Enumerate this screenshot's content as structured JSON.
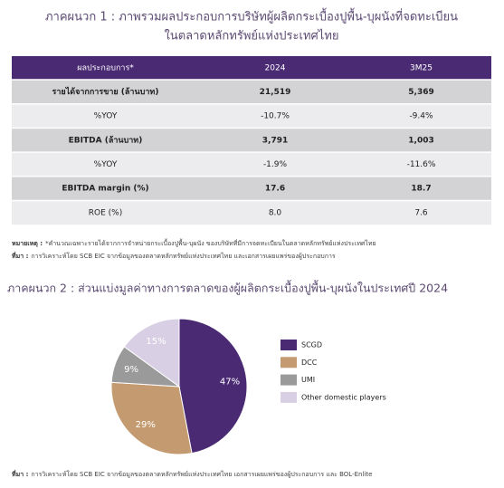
{
  "appendix1": {
    "title_lines": [
      "ภาคผนวก 1 : ภาพรวมผลประกอบการบริษัทผู้ผลิตกระเบื้องปูพื้น-บุผนังที่จดทะเบียน",
      "ในตลาดหลักทรัพย์แห่งประเทศไทย"
    ]
  },
  "table": {
    "header": [
      "ผลประกอบการ*",
      "2024",
      "3M25"
    ],
    "rows": [
      [
        "รายได้จากการขาย (ล้านบาท)",
        "21,519",
        "5,369"
      ],
      [
        "%YOY",
        "-10.7%",
        "-9.4%"
      ],
      [
        "EBITDA (ล้านบาท)",
        "3,791",
        "1,003"
      ],
      [
        "%YOY",
        "-1.9%",
        "-11.6%"
      ],
      [
        "EBITDA margin (%)",
        "17.6",
        "18.7"
      ],
      [
        "ROE (%)",
        "8.0",
        "7.6"
      ]
    ]
  },
  "notes": [
    {
      "label": "หมายเหตุ :",
      "text": "*คำนวณเฉพาะรายได้จากการจำหน่ายกระเบื้องปูพื้น-บุผนัง ของบริษัทที่มีการจดทะเบียนในตลาดหลักทรัพย์แห่งประเทศไทย"
    },
    {
      "label": "ที่มา :",
      "text": "การวิเคราะห์โดย SCB EIC จากข้อมูลของตลาดหลักทรัพย์แห่งประเทศไทย และเอกสารเผยแพร่ของผู้ประกอบการ"
    }
  ],
  "chart_data": {
    "type": "pie",
    "title": "ภาคผนวก 2 : ส่วนแบ่งมูลค่าทางการตลาดของผู้ผลิตกระเบื้องปูพื้น-บุผนังในประเทศปี 2024",
    "categories": [
      "SCGD",
      "DCC",
      "UMI",
      "Other domestic players"
    ],
    "values": [
      47,
      29,
      9,
      15
    ],
    "value_labels": [
      "47%",
      "29%",
      "9%",
      "15%"
    ],
    "colors": [
      "#4a2a73",
      "#c49b70",
      "#9a9a9a",
      "#d9cfe4"
    ],
    "legend": "right"
  },
  "footer": {
    "label": "ที่มา :",
    "text": "การวิเคราะห์โดย SCB EIC จากข้อมูลของตลาดหลักทรัพย์แห่งประเทศไทย เอกสารเผยแพร่ของผู้ประกอบการ และ BOL-Enlite"
  }
}
